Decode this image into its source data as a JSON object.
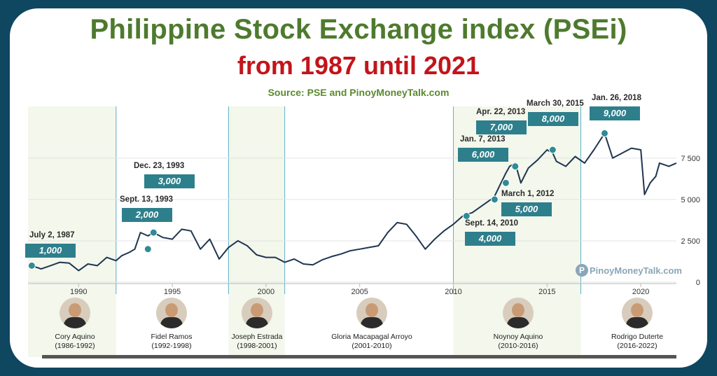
{
  "header": {
    "title": "Philippine Stock Exchange index (PSEi)",
    "subtitle": "from 1987 until 2021",
    "source": "Source: PSE and PinoyMoneyTalk.com"
  },
  "watermark": "PinoyMoneyTalk.com",
  "colors": {
    "title": "#4e7a2e",
    "subtitle": "#c3141a",
    "line": "#1f3550",
    "marker": "#2e8c96",
    "label_box": "#2e7f8c",
    "band": "#f3f7ec",
    "background": "#0f4660"
  },
  "chart_data": {
    "type": "line",
    "x_range": [
      1987.3,
      2021.9
    ],
    "ylim": [
      0,
      10000
    ],
    "y_ticks": [
      0,
      2500,
      5000,
      7500
    ],
    "y_tick_labels": [
      "0",
      "2 500",
      "5 000",
      "7 500"
    ],
    "x_ticks": [
      1990,
      1995,
      2000,
      2005,
      2010,
      2015,
      2020
    ],
    "x_tick_labels": [
      "1990",
      "1995",
      "2000",
      "2005",
      "2010",
      "2015",
      "2020"
    ],
    "grid": true,
    "series": [
      {
        "x": [
          1987.5,
          1988.0,
          1988.5,
          1989.0,
          1989.5,
          1990.0,
          1990.5,
          1991.0,
          1991.5,
          1992.0,
          1992.3,
          1992.7,
          1993.0,
          1993.3,
          1993.7,
          1994.0,
          1994.5,
          1995.0,
          1995.5,
          1996.0,
          1996.5,
          1997.0,
          1997.5,
          1998.0,
          1998.5,
          1999.0,
          1999.5,
          2000.0,
          2000.5,
          2001.0,
          2001.5,
          2002.0,
          2002.5,
          2003.0,
          2003.5,
          2004.0,
          2004.5,
          2005.0,
          2005.5,
          2006.0,
          2006.5,
          2007.0,
          2007.5,
          2008.0,
          2008.5,
          2009.0,
          2009.5,
          2010.0,
          2010.5,
          2010.7,
          2011.0,
          2011.5,
          2012.0,
          2012.2,
          2012.5,
          2012.8,
          2013.0,
          2013.3,
          2013.6,
          2014.0,
          2014.5,
          2015.0,
          2015.3,
          2015.5,
          2016.0,
          2016.5,
          2017.0,
          2017.5,
          2018.07,
          2018.5,
          2019.0,
          2019.5,
          2020.0,
          2020.2,
          2020.5,
          2020.8,
          2021.0,
          2021.5,
          2021.9
        ],
        "y": [
          1000,
          800,
          1000,
          1200,
          1150,
          700,
          1100,
          1000,
          1500,
          1300,
          1600,
          1800,
          2000,
          3000,
          2800,
          3000,
          2700,
          2600,
          3200,
          3100,
          2000,
          2600,
          1400,
          2100,
          2500,
          2200,
          1650,
          1500,
          1500,
          1200,
          1400,
          1100,
          1050,
          1350,
          1550,
          1700,
          1900,
          2000,
          2100,
          2200,
          3000,
          3600,
          3500,
          2800,
          2000,
          2600,
          3100,
          3500,
          4000,
          4100,
          4200,
          4600,
          5000,
          5200,
          5900,
          6600,
          7000,
          7200,
          6000,
          6900,
          7400,
          8000,
          7800,
          7300,
          7000,
          7600,
          7200,
          8000,
          9000,
          7500,
          7800,
          8100,
          8000,
          5300,
          6000,
          6400,
          7200,
          7000,
          7200
        ]
      }
    ],
    "milestones": [
      {
        "date": "July 2, 1987",
        "value": "1,000",
        "x": 1987.5,
        "y": 1000
      },
      {
        "date": "Sept. 13, 1993",
        "value": "2,000",
        "x": 1993.7,
        "y": 2000
      },
      {
        "date": "Dec. 23, 1993",
        "value": "3,000",
        "x": 1994.0,
        "y": 3000
      },
      {
        "date": "Sept. 14, 2010",
        "value": "4,000",
        "x": 2010.7,
        "y": 4000
      },
      {
        "date": "March 1, 2012",
        "value": "5,000",
        "x": 2012.2,
        "y": 5000
      },
      {
        "date": "Jan. 7, 2013",
        "value": "6,000",
        "x": 2012.8,
        "y": 6000
      },
      {
        "date": "Apr. 22, 2013",
        "value": "7,000",
        "x": 2013.3,
        "y": 7000
      },
      {
        "date": "March 30, 2015",
        "value": "8,000",
        "x": 2015.3,
        "y": 8000
      },
      {
        "date": "Jan. 26, 2018",
        "value": "9,000",
        "x": 2018.07,
        "y": 9000
      }
    ],
    "presidencies": [
      {
        "name": "Cory Aquino",
        "term": "(1986-1992)",
        "start": 1987.3,
        "end": 1992.0,
        "shaded": true
      },
      {
        "name": "Fidel Ramos",
        "term": "(1992-1998)",
        "start": 1992.0,
        "end": 1998.0,
        "shaded": false
      },
      {
        "name": "Joseph Estrada",
        "term": "(1998-2001)",
        "start": 1998.0,
        "end": 2001.0,
        "shaded": true
      },
      {
        "name": "Gloria Macapagal Arroyo",
        "term": "(2001-2010)",
        "start": 2001.0,
        "end": 2010.0,
        "shaded": false
      },
      {
        "name": "Noynoy Aquino",
        "term": "(2010-2016)",
        "start": 2010.0,
        "end": 2016.8,
        "shaded": true
      },
      {
        "name": "Rodrigo Duterte",
        "term": "(2016-2022)",
        "start": 2016.8,
        "end": 2021.9,
        "shaded": false
      }
    ]
  }
}
